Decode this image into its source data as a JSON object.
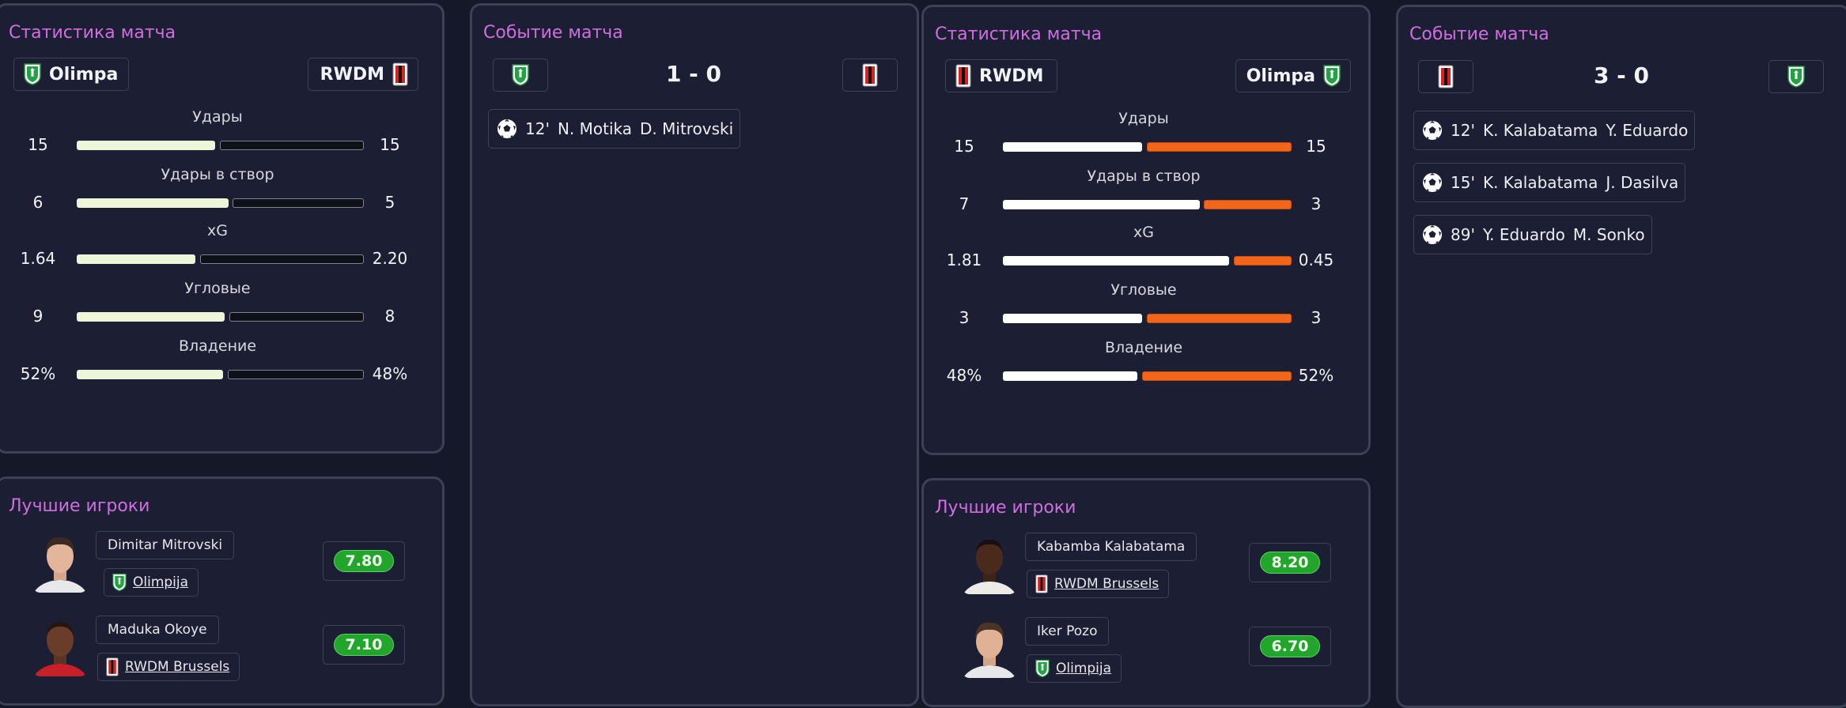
{
  "labels": {
    "stats_title": "Статистика матча",
    "events_title": "Событие матча",
    "top_title": "Лучшие игроки"
  },
  "matches": [
    {
      "home": "Olimpa",
      "away": "RWDM",
      "score": "1 - 0",
      "stats": [
        {
          "label": "Удары",
          "left": "15",
          "right": "15"
        },
        {
          "label": "Удары в створ",
          "left": "6",
          "right": "5"
        },
        {
          "label": "xG",
          "left": "1.64",
          "right": "2.20"
        },
        {
          "label": "Угловые",
          "left": "9",
          "right": "8"
        },
        {
          "label": "Владение",
          "left": "52%",
          "right": "48%"
        }
      ],
      "events": [
        {
          "minute": "12'",
          "scorer": "N. Motika",
          "assist": "D. Mitrovski"
        }
      ],
      "players": [
        {
          "name": "Dimitar Mitrovski",
          "team": "Olimpija",
          "rating": "7.80"
        },
        {
          "name": "Maduka Okoye",
          "team": "RWDM Brussels",
          "rating": "7.10"
        }
      ]
    },
    {
      "home": "RWDM",
      "away": "Olimpa",
      "score": "3 - 0",
      "stats": [
        {
          "label": "Удары",
          "left": "15",
          "right": "15"
        },
        {
          "label": "Удары в створ",
          "left": "7",
          "right": "3"
        },
        {
          "label": "xG",
          "left": "1.81",
          "right": "0.45"
        },
        {
          "label": "Угловые",
          "left": "3",
          "right": "3"
        },
        {
          "label": "Владение",
          "left": "48%",
          "right": "52%"
        }
      ],
      "events": [
        {
          "minute": "12'",
          "scorer": "K. Kalabatama",
          "assist": "Y. Eduardo"
        },
        {
          "minute": "15'",
          "scorer": "K. Kalabatama",
          "assist": "J. Dasilva"
        },
        {
          "minute": "89'",
          "scorer": "Y. Eduardo",
          "assist": "M. Sonko"
        }
      ],
      "players": [
        {
          "name": "Kabamba Kalabatama",
          "team": "RWDM Brussels",
          "rating": "8.20"
        },
        {
          "name": "Iker Pozo",
          "team": "Olimpija",
          "rating": "6.70"
        }
      ]
    }
  ],
  "colors": {
    "title": "#d06ee0",
    "bar_left_1": "#eef6da",
    "bar_right_1": "#0f1118",
    "bar_left_2": "#ffffff",
    "bar_right_2": "#f2661c",
    "rating": "#22a52b"
  },
  "icons": {
    "olimpija": "green-shield-crest-icon",
    "rwdm": "red-black-striped-crest-icon",
    "event": "soccer-ball-icon"
  }
}
